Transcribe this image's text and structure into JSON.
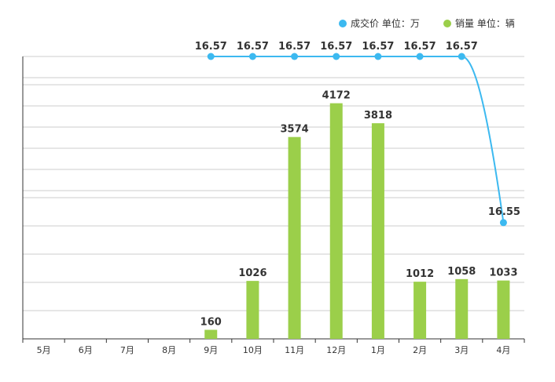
{
  "chart_data": {
    "type": "bar+line",
    "categories": [
      "5月",
      "6月",
      "7月",
      "8月",
      "9月",
      "10月",
      "11月",
      "12月",
      "1月",
      "2月",
      "3月",
      "4月"
    ],
    "series": [
      {
        "name": "成交价 单位：万",
        "legend_parts": [
          "成交价",
          "单位：万"
        ],
        "type": "line",
        "color": "#3cb9f0",
        "values": [
          null,
          null,
          null,
          null,
          16.57,
          16.57,
          16.57,
          16.57,
          16.57,
          16.57,
          16.57,
          16.55
        ],
        "labels": [
          "",
          "",
          "",
          "",
          "16.57",
          "16.57",
          "16.57",
          "16.57",
          "16.57",
          "16.57",
          "16.57",
          "16.55"
        ]
      },
      {
        "name": "销量 单位：辆",
        "legend_parts": [
          "销量",
          "单位：辆"
        ],
        "type": "bar",
        "color": "#9bcf4a",
        "values": [
          null,
          null,
          null,
          null,
          160,
          1026,
          3574,
          4172,
          3818,
          1012,
          1058,
          1033
        ],
        "labels": [
          "",
          "",
          "",
          "",
          "160",
          "1026",
          "3574",
          "4172",
          "3818",
          "1012",
          "1058",
          "1033"
        ]
      }
    ],
    "bar_axis_max": 5000,
    "line_axis_range": [
      16.536,
      16.57
    ],
    "grid": true,
    "legend_position": "top-right"
  }
}
